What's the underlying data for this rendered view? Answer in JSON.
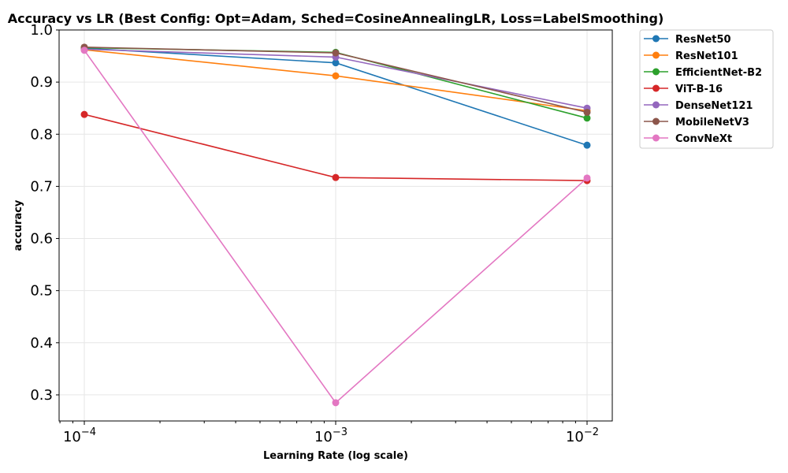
{
  "chart_data": {
    "type": "line",
    "title": "Accuracy vs LR (Best Config: Opt=Adam, Sched=CosineAnnealingLR, Loss=LabelSmoothing)",
    "xlabel": "Learning Rate (log scale)",
    "ylabel": "accuracy",
    "xscale": "log",
    "x": [
      0.0001,
      0.001,
      0.01
    ],
    "x_tick_labels": [
      {
        "base": "10",
        "exp": "−4"
      },
      {
        "base": "10",
        "exp": "−3"
      },
      {
        "base": "10",
        "exp": "−2"
      }
    ],
    "ylim": [
      0.25,
      1.0
    ],
    "yticks": [
      "0.3",
      "0.4",
      "0.5",
      "0.6",
      "0.7",
      "0.8",
      "0.9",
      "1.0"
    ],
    "grid": true,
    "legend_position": "outside right, top",
    "series": [
      {
        "name": "ResNet50",
        "color": "#1f77b4",
        "values": [
          0.965,
          0.937,
          0.779
        ]
      },
      {
        "name": "ResNet101",
        "color": "#ff7f0e",
        "values": [
          0.962,
          0.912,
          0.845
        ]
      },
      {
        "name": "EfficientNet-B2",
        "color": "#2ca02c",
        "values": [
          0.966,
          0.957,
          0.831
        ]
      },
      {
        "name": "ViT-B-16",
        "color": "#d62728",
        "values": [
          0.838,
          0.717,
          0.711
        ]
      },
      {
        "name": "DenseNet121",
        "color": "#9467bd",
        "values": [
          0.963,
          0.948,
          0.85
        ]
      },
      {
        "name": "MobileNetV3",
        "color": "#8c564b",
        "values": [
          0.967,
          0.956,
          0.842
        ]
      },
      {
        "name": "ConvNeXt",
        "color": "#e377c2",
        "values": [
          0.961,
          0.285,
          0.716
        ]
      }
    ]
  }
}
